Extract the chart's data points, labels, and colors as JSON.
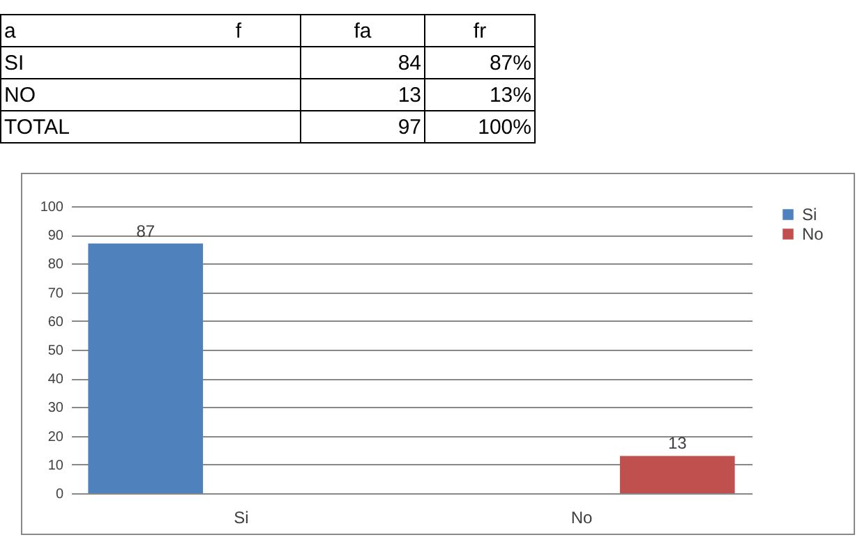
{
  "chart_data": [
    {
      "type": "other",
      "annotations": [
        "a",
        "f",
        "fa",
        "fr",
        "SI",
        "84",
        "87%",
        "NO",
        "13",
        "13%",
        "TOTAL",
        "97",
        "100%"
      ]
    },
    {
      "type": "bar",
      "categories": [
        "Si",
        "No"
      ],
      "series": [
        {
          "name": "Si",
          "color": "#4f81bd",
          "values": [
            87,
            null
          ]
        },
        {
          "name": "No",
          "color": "#c0504d",
          "values": [
            null,
            13
          ]
        }
      ],
      "ylim": [
        0,
        100
      ],
      "yticks": [
        0,
        10,
        20,
        30,
        40,
        50,
        60,
        70,
        80,
        90,
        100
      ],
      "grid": "y",
      "legend": "right",
      "data_labels": true
    }
  ]
}
